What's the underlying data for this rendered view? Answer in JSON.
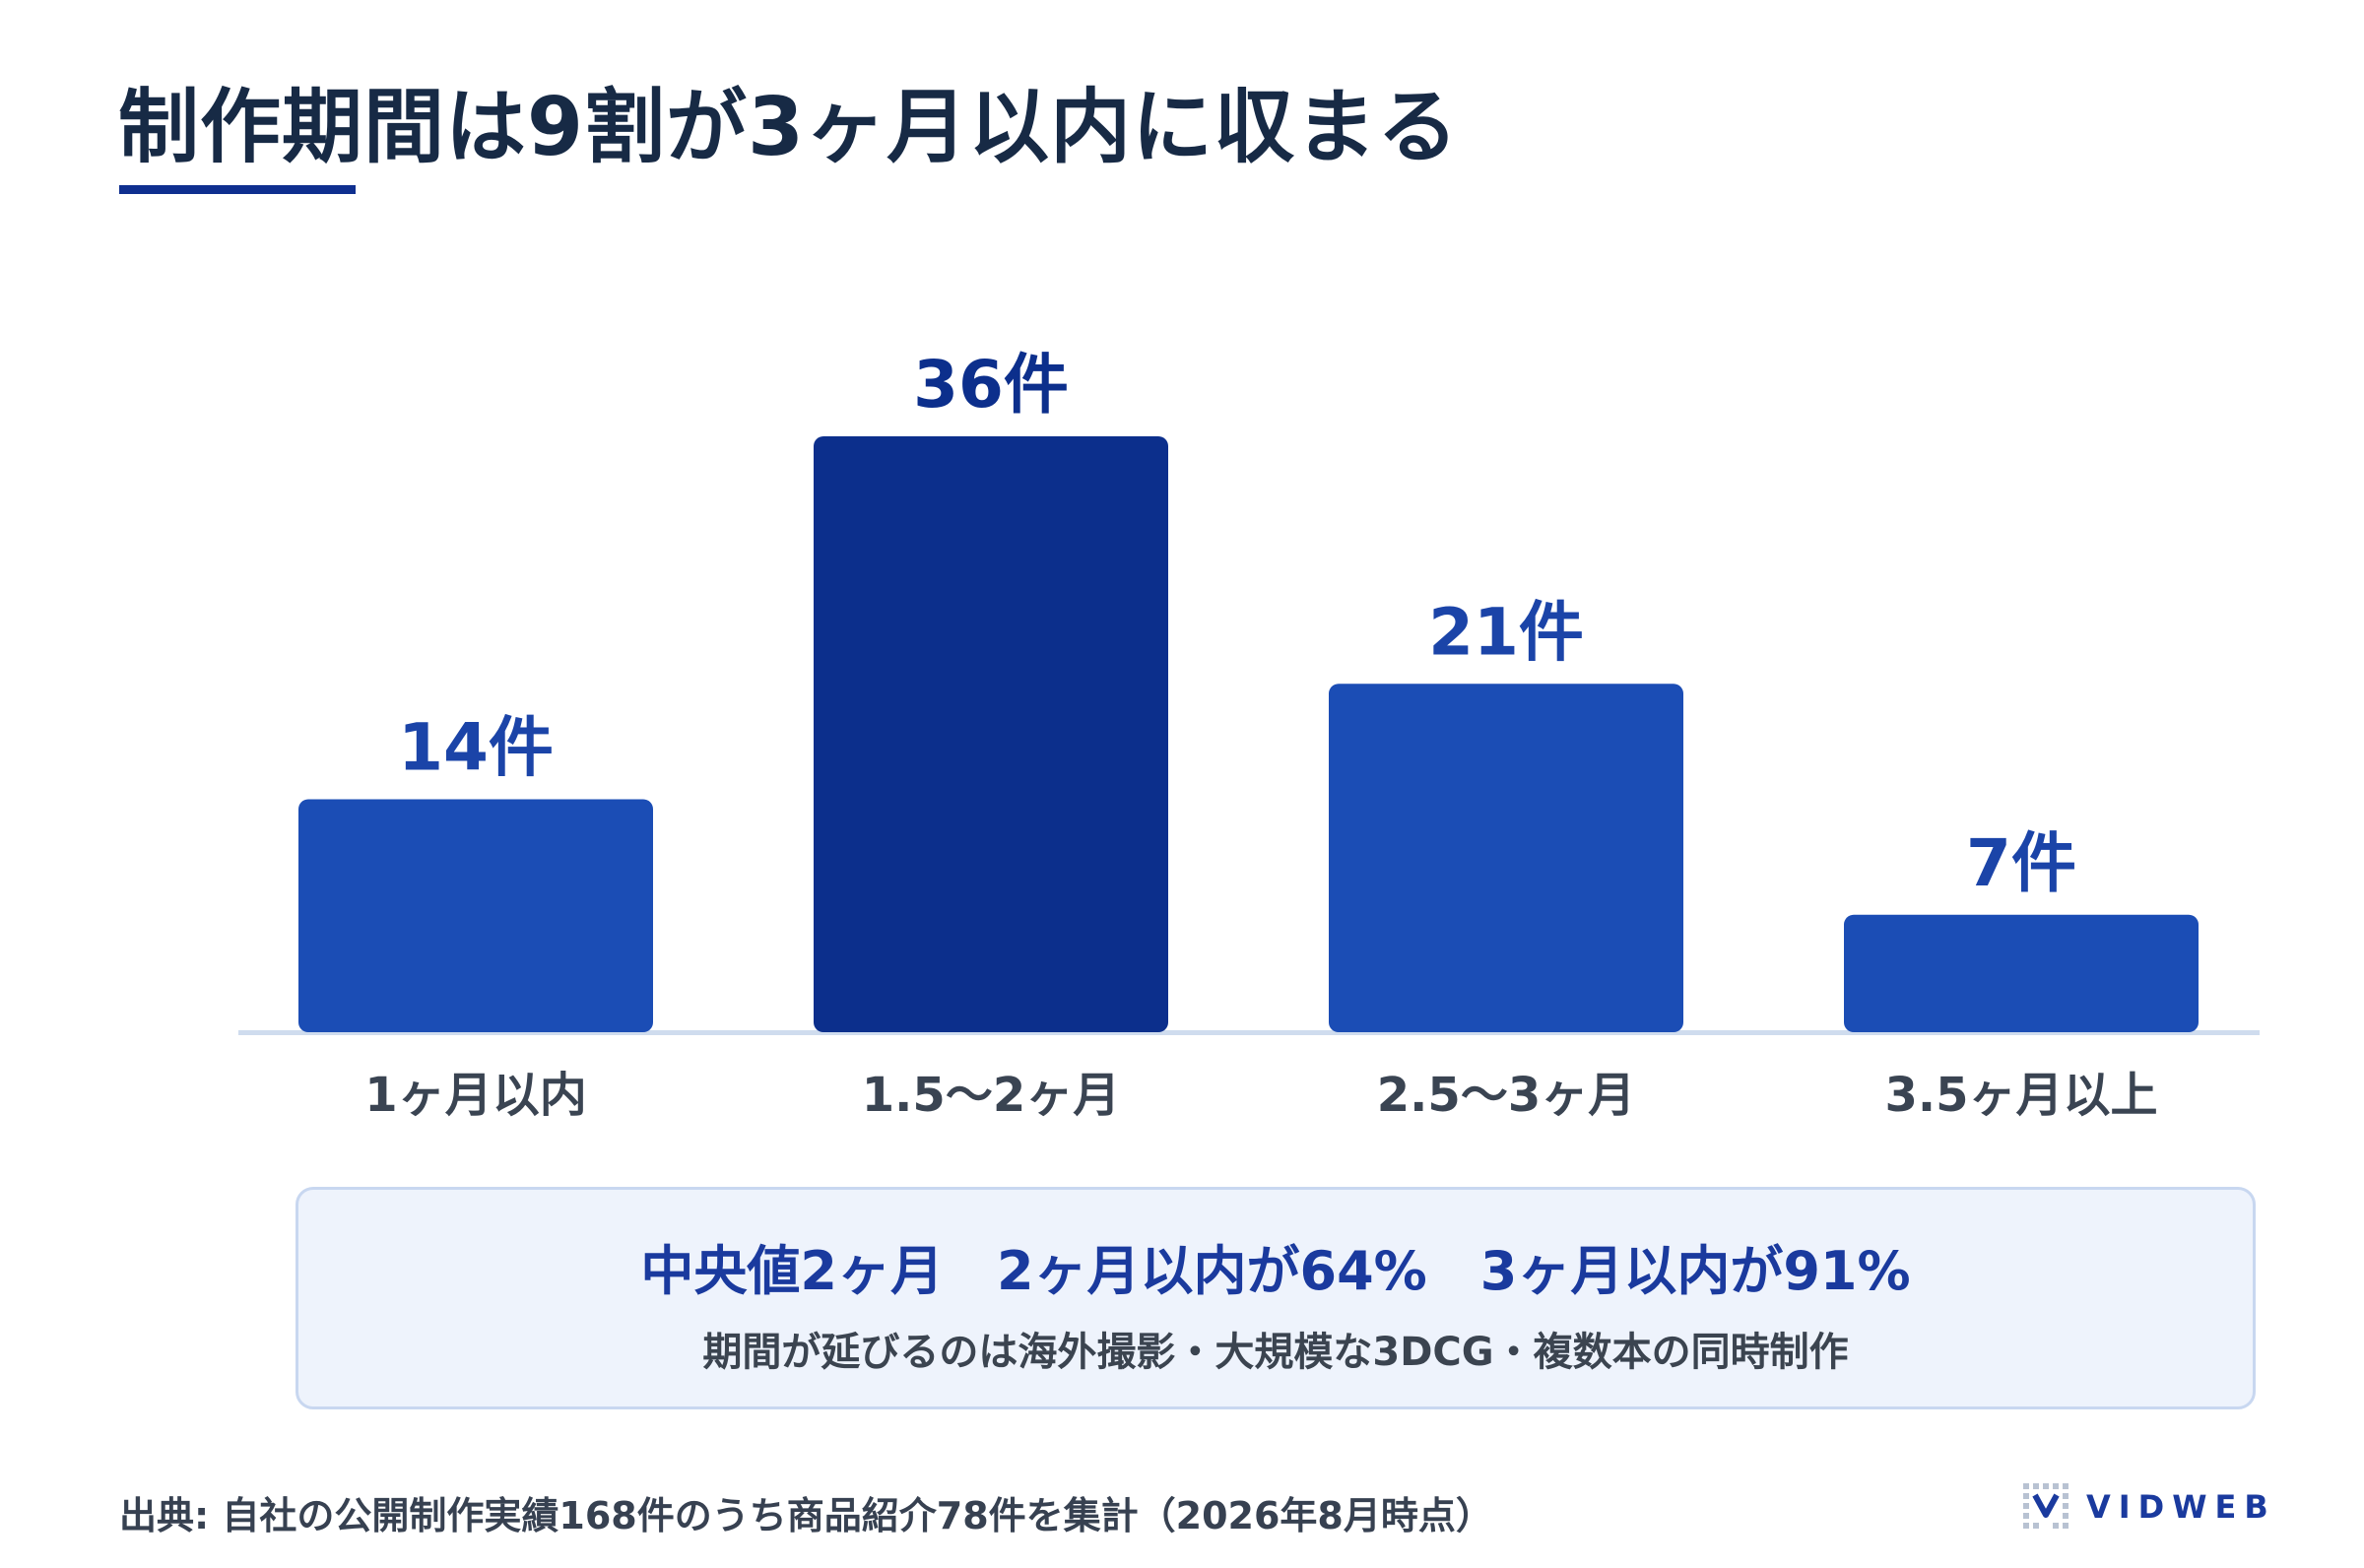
{
  "title": "制作期間は9割が3ヶ月以内に収まる",
  "chart_data": {
    "type": "bar",
    "categories": [
      "1ヶ月以内",
      "1.5〜2ヶ月",
      "2.5〜3ヶ月",
      "3.5ヶ月以上"
    ],
    "values": [
      14,
      36,
      21,
      7
    ],
    "value_labels": [
      "14件",
      "36件",
      "21件",
      "7件"
    ],
    "ylim": [
      0,
      36
    ],
    "grid": false,
    "highlight_index": 1,
    "colors": {
      "bar": "#1b4db5",
      "highlight": "#0c2f8c",
      "label": "#1b44a8",
      "axis": "#cfdcee",
      "category": "#3a4452"
    }
  },
  "summary": {
    "headline": "中央値2ヶ月　2ヶ月以内が64%　3ヶ月以内が91%",
    "note": "期間が延びるのは海外撮影・大規模な3DCG・複数本の同時制作"
  },
  "source": "出典: 自社の公開制作実績168件のうち商品紹介78件を集計（2026年8月時点）",
  "logo": {
    "text": "VIDWEB",
    "icon": "vidweb-logo-icon"
  }
}
